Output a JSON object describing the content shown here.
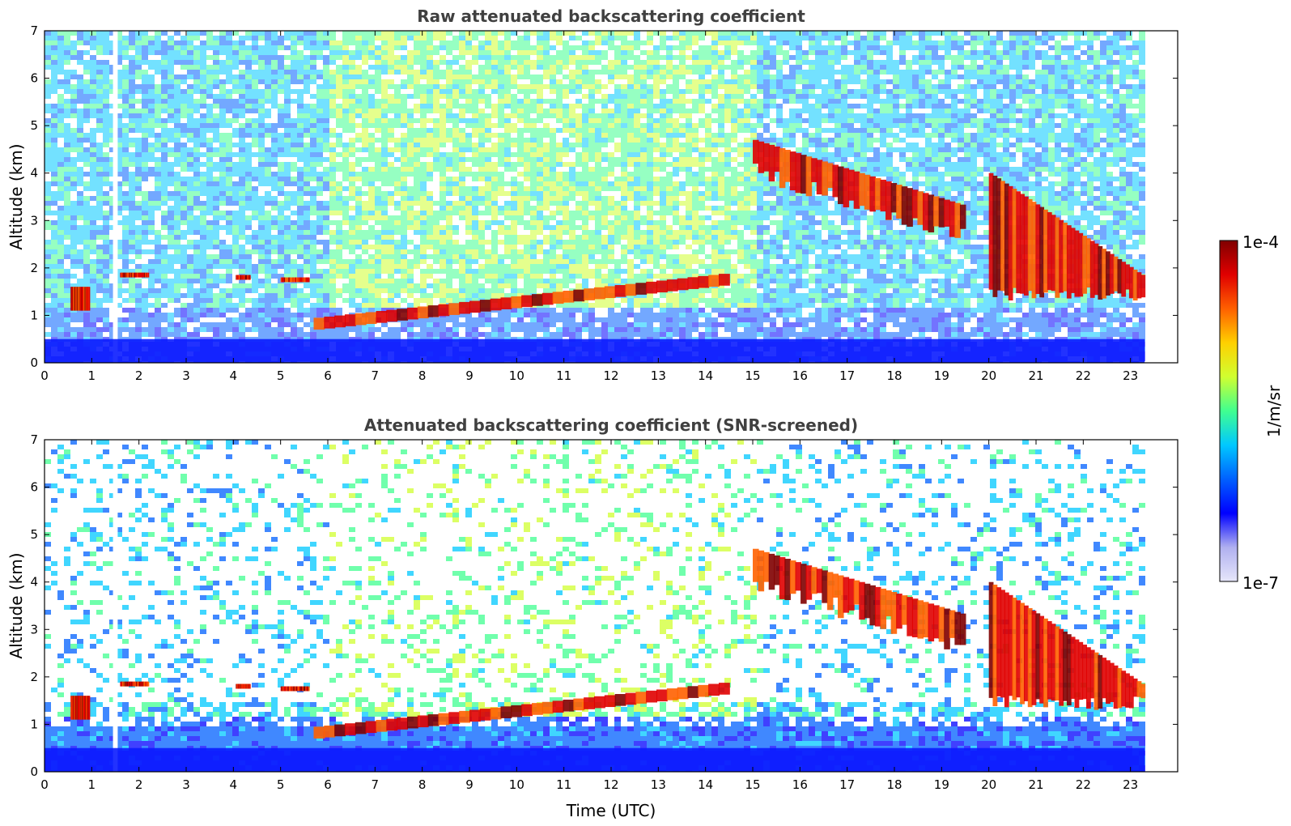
{
  "chart_data": [
    {
      "type": "heatmap",
      "title": "Raw attenuated backscattering coefficient",
      "xlabel": "",
      "ylabel": "Altitude (km)",
      "xlim": [
        0,
        24
      ],
      "ylim": [
        0,
        7
      ],
      "xticks": [
        "0",
        "1",
        "2",
        "3",
        "4",
        "5",
        "6",
        "7",
        "8",
        "9",
        "10",
        "11",
        "12",
        "13",
        "14",
        "15",
        "16",
        "17",
        "18",
        "19",
        "20",
        "21",
        "22",
        "23"
      ],
      "yticks": [
        "0",
        "1",
        "2",
        "3",
        "4",
        "5",
        "6",
        "7"
      ],
      "data_end_time": 23.3,
      "data_gap": [
        1.45,
        1.55
      ],
      "features": [
        {
          "name": "boundary-layer aerosol",
          "time": [
            0,
            23.3
          ],
          "altitude": [
            0,
            0.5
          ]
        },
        {
          "name": "low cloud",
          "time": [
            0.55,
            0.95
          ],
          "altitude": [
            1.1,
            1.6
          ]
        },
        {
          "name": "cloud layer",
          "time": [
            1.6,
            2.2
          ],
          "altitude": [
            1.8,
            1.9
          ]
        },
        {
          "name": "cloud layer",
          "time": [
            4.05,
            4.35
          ],
          "altitude": [
            1.75,
            1.85
          ]
        },
        {
          "name": "cloud layer",
          "time": [
            5.0,
            5.6
          ],
          "altitude": [
            1.7,
            1.8
          ]
        },
        {
          "name": "rising cloud base",
          "time": [
            5.7,
            14.5
          ],
          "altitude": [
            0.7,
            1.9
          ]
        },
        {
          "name": "descending cloud",
          "time": [
            15.0,
            19.5
          ],
          "altitude": [
            2.8,
            4.7
          ]
        },
        {
          "name": "precipitating cloud",
          "time": [
            20.0,
            23.3
          ],
          "altitude": [
            1.3,
            4.0
          ]
        }
      ]
    },
    {
      "type": "heatmap",
      "title": "Attenuated backscattering coefficient (SNR-screened)",
      "xlabel": "Time (UTC)",
      "ylabel": "Altitude (km)",
      "xlim": [
        0,
        24
      ],
      "ylim": [
        0,
        7
      ],
      "xticks": [
        "0",
        "1",
        "2",
        "3",
        "4",
        "5",
        "6",
        "7",
        "8",
        "9",
        "10",
        "11",
        "12",
        "13",
        "14",
        "15",
        "16",
        "17",
        "18",
        "19",
        "20",
        "21",
        "22",
        "23"
      ],
      "yticks": [
        "0",
        "1",
        "2",
        "3",
        "4",
        "5",
        "6",
        "7"
      ],
      "data_end_time": 23.3,
      "data_gap": [
        1.45,
        1.55
      ]
    }
  ],
  "colorbar": {
    "label": "1/m/sr",
    "min_label": "1e-7",
    "max_label": "1e-4",
    "scale": "log",
    "colors": [
      "#e6e6fa",
      "#b0b0f0",
      "#0000ff",
      "#0060ff",
      "#00c8ff",
      "#40ff90",
      "#d0ff30",
      "#ffd000",
      "#ff6000",
      "#e00000",
      "#800000"
    ]
  }
}
